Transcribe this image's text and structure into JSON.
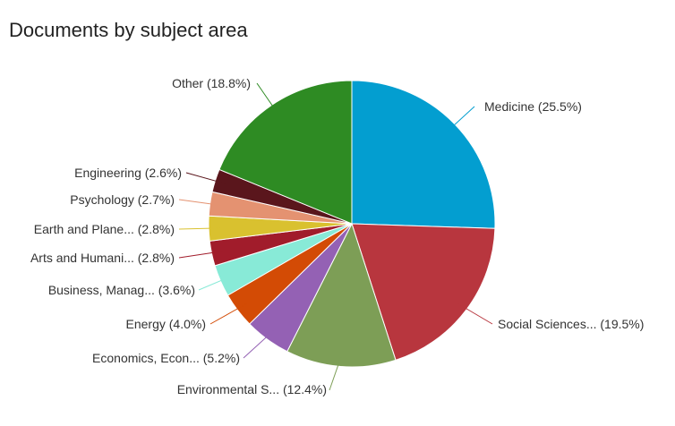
{
  "chart_data": {
    "type": "pie",
    "title": "Documents by subject area",
    "legend": "labels-outside",
    "slices": [
      {
        "label": "Medicine (25.5%)",
        "value": 25.5,
        "color": "#039ED0"
      },
      {
        "label": "Social Sciences... (19.5%)",
        "value": 19.5,
        "color": "#B8363E"
      },
      {
        "label": "Environmental S... (12.4%)",
        "value": 12.4,
        "color": "#7D9E56"
      },
      {
        "label": "Economics, Econ... (5.2%)",
        "value": 5.2,
        "color": "#9461B4"
      },
      {
        "label": "Energy (4.0%)",
        "value": 4.0,
        "color": "#D34B05"
      },
      {
        "label": "Business, Manag... (3.6%)",
        "value": 3.6,
        "color": "#88EAD7"
      },
      {
        "label": "Arts and Humani... (2.8%)",
        "value": 2.8,
        "color": "#A11C2B"
      },
      {
        "label": "Earth and Plane... (2.8%)",
        "value": 2.8,
        "color": "#D9C12F"
      },
      {
        "label": "Psychology (2.7%)",
        "value": 2.7,
        "color": "#E49271"
      },
      {
        "label": "Engineering (2.6%)",
        "value": 2.6,
        "color": "#5A161C"
      },
      {
        "label": "Other (18.8%)",
        "value": 18.8,
        "color": "#2E8B23"
      }
    ]
  }
}
